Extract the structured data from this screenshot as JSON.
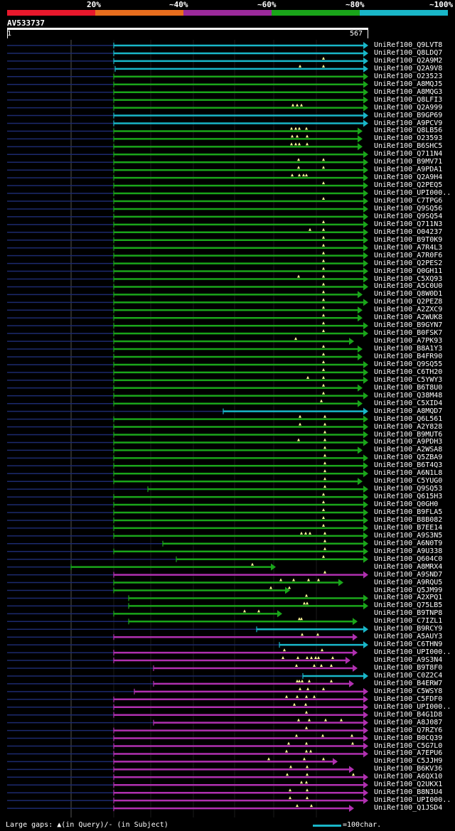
{
  "legend": {
    "labels": [
      "20%",
      "~40%",
      "~60%",
      "~80%",
      "~100%"
    ],
    "colors": [
      "#e8182c",
      "#e86e1e",
      "#9b2a9b",
      "#1aa51a",
      "#19b6c8"
    ]
  },
  "query": {
    "id": "AV533737",
    "start": "1",
    "end": "567",
    "length": 567
  },
  "colors": {
    "cyan": "#19b6c8",
    "green": "#1aa51a",
    "magenta": "#b030b0",
    "navy": "#1c2a6e",
    "gapline": "#222"
  },
  "hits": [
    {
      "name": "UniRef100_Q9LVT8",
      "color": "cyan",
      "start": 160,
      "end": 518,
      "marks": []
    },
    {
      "name": "UniRef100_Q8LDQ7",
      "color": "cyan",
      "start": 160,
      "end": 518,
      "marks": []
    },
    {
      "name": "UniRef100_Q2A9M2",
      "color": "cyan",
      "start": 160,
      "end": 518,
      "marks": [
        455
      ]
    },
    {
      "name": "UniRef100_Q2A9V8",
      "color": "cyan",
      "start": 162,
      "end": 518,
      "marks": [
        422,
        455
      ]
    },
    {
      "name": "UniRef100_O23523",
      "color": "green",
      "start": 160,
      "end": 518,
      "marks": []
    },
    {
      "name": "UniRef100_A8MQJ5",
      "color": "green",
      "start": 160,
      "end": 518,
      "marks": []
    },
    {
      "name": "UniRef100_A8MQG3",
      "color": "green",
      "start": 160,
      "end": 518,
      "marks": []
    },
    {
      "name": "UniRef100_Q8LFI3",
      "color": "green",
      "start": 160,
      "end": 518,
      "marks": []
    },
    {
      "name": "UniRef100_Q2A999",
      "color": "green",
      "start": 160,
      "end": 518,
      "marks": [
        412,
        418,
        424
      ]
    },
    {
      "name": "UniRef100_B9GP69",
      "color": "cyan",
      "start": 160,
      "end": 518,
      "marks": []
    },
    {
      "name": "UniRef100_A9PCV9",
      "color": "cyan",
      "start": 160,
      "end": 518,
      "marks": []
    },
    {
      "name": "UniRef100_Q8LB56",
      "color": "green",
      "start": 160,
      "end": 510,
      "marks": [
        410,
        416,
        421,
        431
      ]
    },
    {
      "name": "UniRef100_O23593",
      "color": "green",
      "start": 160,
      "end": 510,
      "marks": [
        411,
        418,
        432
      ]
    },
    {
      "name": "UniRef100_B6SHC5",
      "color": "green",
      "start": 160,
      "end": 510,
      "marks": [
        410,
        416,
        421,
        432
      ]
    },
    {
      "name": "UniRef100_Q711N4",
      "color": "green",
      "start": 160,
      "end": 518,
      "marks": []
    },
    {
      "name": "UniRef100_B9MV71",
      "color": "green",
      "start": 160,
      "end": 518,
      "marks": [
        420,
        455
      ]
    },
    {
      "name": "UniRef100_A9PDA1",
      "color": "green",
      "start": 160,
      "end": 518,
      "marks": [
        420,
        455
      ]
    },
    {
      "name": "UniRef100_Q2A9H4",
      "color": "green",
      "start": 160,
      "end": 518,
      "marks": [
        411,
        421,
        427,
        431
      ]
    },
    {
      "name": "UniRef100_Q2PEQ5",
      "color": "green",
      "start": 160,
      "end": 518,
      "marks": [
        455
      ]
    },
    {
      "name": "UniRef100_UPI000..",
      "color": "green",
      "start": 160,
      "end": 518,
      "marks": []
    },
    {
      "name": "UniRef100_C7TPG6",
      "color": "green",
      "start": 160,
      "end": 518,
      "marks": [
        455
      ]
    },
    {
      "name": "UniRef100_Q9SQ56",
      "color": "green",
      "start": 160,
      "end": 518,
      "marks": []
    },
    {
      "name": "UniRef100_Q9SQ54",
      "color": "green",
      "start": 160,
      "end": 518,
      "marks": []
    },
    {
      "name": "UniRef100_Q711N3",
      "color": "green",
      "start": 160,
      "end": 518,
      "marks": [
        455
      ]
    },
    {
      "name": "UniRef100_O04237",
      "color": "green",
      "start": 160,
      "end": 518,
      "marks": [
        436,
        455
      ]
    },
    {
      "name": "UniRef100_B9T0K9",
      "color": "green",
      "start": 160,
      "end": 518,
      "marks": [
        455
      ]
    },
    {
      "name": "UniRef100_A7R4L3",
      "color": "green",
      "start": 160,
      "end": 518,
      "marks": [
        455
      ]
    },
    {
      "name": "UniRef100_A7R0F6",
      "color": "green",
      "start": 160,
      "end": 518,
      "marks": [
        455
      ]
    },
    {
      "name": "UniRef100_Q2PES2",
      "color": "green",
      "start": 160,
      "end": 518,
      "marks": [
        455
      ]
    },
    {
      "name": "UniRef100_Q0GH11",
      "color": "green",
      "start": 160,
      "end": 518,
      "marks": [
        455
      ]
    },
    {
      "name": "UniRef100_C5XQ93",
      "color": "green",
      "start": 160,
      "end": 518,
      "marks": [
        420,
        455
      ]
    },
    {
      "name": "UniRef100_A5C0U0",
      "color": "green",
      "start": 160,
      "end": 518,
      "marks": [
        455
      ]
    },
    {
      "name": "UniRef100_Q8W0D1",
      "color": "green",
      "start": 160,
      "end": 510,
      "marks": [
        455
      ]
    },
    {
      "name": "UniRef100_Q2PEZ8",
      "color": "green",
      "start": 160,
      "end": 518,
      "marks": [
        455
      ]
    },
    {
      "name": "UniRef100_A2ZXC9",
      "color": "green",
      "start": 160,
      "end": 510,
      "marks": [
        455
      ]
    },
    {
      "name": "UniRef100_A2WUK8",
      "color": "green",
      "start": 160,
      "end": 510,
      "marks": [
        455
      ]
    },
    {
      "name": "UniRef100_B9GYN7",
      "color": "green",
      "start": 160,
      "end": 518,
      "marks": [
        455
      ]
    },
    {
      "name": "UniRef100_B0FSK7",
      "color": "green",
      "start": 160,
      "end": 518,
      "marks": [
        455
      ]
    },
    {
      "name": "UniRef100_A7PK93",
      "color": "green",
      "start": 160,
      "end": 498,
      "marks": [
        416
      ]
    },
    {
      "name": "UniRef100_B8A1Y3",
      "color": "green",
      "start": 160,
      "end": 510,
      "marks": [
        455
      ]
    },
    {
      "name": "UniRef100_B4FR90",
      "color": "green",
      "start": 160,
      "end": 510,
      "marks": [
        455
      ]
    },
    {
      "name": "UniRef100_Q9SQ55",
      "color": "green",
      "start": 160,
      "end": 518,
      "marks": [
        455
      ]
    },
    {
      "name": "UniRef100_C6TH20",
      "color": "green",
      "start": 160,
      "end": 518,
      "marks": [
        455
      ]
    },
    {
      "name": "UniRef100_C5YWY3",
      "color": "green",
      "start": 160,
      "end": 518,
      "marks": [
        433,
        455
      ]
    },
    {
      "name": "UniRef100_B6T8U0",
      "color": "green",
      "start": 160,
      "end": 510,
      "marks": [
        455
      ]
    },
    {
      "name": "UniRef100_Q38M48",
      "color": "green",
      "start": 160,
      "end": 518,
      "marks": [
        455
      ]
    },
    {
      "name": "UniRef100_C5XID4",
      "color": "green",
      "start": 160,
      "end": 510,
      "marks": [
        452
      ]
    },
    {
      "name": "UniRef100_A8MQD7",
      "color": "cyan",
      "start": 314,
      "end": 518,
      "marks": []
    },
    {
      "name": "UniRef100_Q6L561",
      "color": "green",
      "start": 160,
      "end": 518,
      "marks": [
        422,
        457
      ]
    },
    {
      "name": "UniRef100_A2Y828",
      "color": "green",
      "start": 160,
      "end": 518,
      "marks": [
        422,
        457
      ]
    },
    {
      "name": "UniRef100_B9MUT6",
      "color": "green",
      "start": 160,
      "end": 518,
      "marks": [
        457
      ]
    },
    {
      "name": "UniRef100_A9PDH3",
      "color": "green",
      "start": 160,
      "end": 518,
      "marks": [
        420,
        457
      ]
    },
    {
      "name": "UniRef100_A2WSA8",
      "color": "green",
      "start": 160,
      "end": 510,
      "marks": [
        457
      ]
    },
    {
      "name": "UniRef100_Q5ZBA9",
      "color": "green",
      "start": 160,
      "end": 518,
      "marks": [
        457
      ]
    },
    {
      "name": "UniRef100_B6T4Q3",
      "color": "green",
      "start": 160,
      "end": 518,
      "marks": [
        457
      ]
    },
    {
      "name": "UniRef100_A6N1L8",
      "color": "green",
      "start": 160,
      "end": 518,
      "marks": [
        457
      ]
    },
    {
      "name": "UniRef100_C5YUG0",
      "color": "green",
      "start": 160,
      "end": 510,
      "marks": [
        457
      ]
    },
    {
      "name": "UniRef100_Q9SQ53",
      "color": "green",
      "start": 208,
      "end": 518,
      "marks": [
        457
      ]
    },
    {
      "name": "UniRef100_Q615H3",
      "color": "green",
      "start": 160,
      "end": 518,
      "marks": [
        455
      ]
    },
    {
      "name": "UniRef100_Q0GH0",
      "color": "green",
      "start": 160,
      "end": 518,
      "marks": [
        455
      ]
    },
    {
      "name": "UniRef100_B9FLA5",
      "color": "green",
      "start": 160,
      "end": 518,
      "marks": [
        455
      ]
    },
    {
      "name": "UniRef100_B8B082",
      "color": "green",
      "start": 160,
      "end": 518,
      "marks": [
        455
      ]
    },
    {
      "name": "UniRef100_B7EE14",
      "color": "green",
      "start": 160,
      "end": 518,
      "marks": [
        455
      ]
    },
    {
      "name": "UniRef100_A9S3N5",
      "color": "green",
      "start": 160,
      "end": 518,
      "marks": [
        424,
        430,
        436,
        457
      ]
    },
    {
      "name": "UniRef100_A6N0T9",
      "color": "green",
      "start": 229,
      "end": 518,
      "marks": [
        457
      ]
    },
    {
      "name": "UniRef100_A9U338",
      "color": "green",
      "start": 160,
      "end": 518,
      "marks": [
        457
      ]
    },
    {
      "name": "UniRef100_Q604C0",
      "color": "green",
      "start": 248,
      "end": 518,
      "marks": [
        455
      ]
    },
    {
      "name": "UniRef100_A8MRX4",
      "color": "green",
      "start": 100,
      "end": 388,
      "marks": [
        355
      ]
    },
    {
      "name": "UniRef100_A9SND7",
      "color": "magenta",
      "start": 160,
      "end": 518,
      "marks": [
        457
      ]
    },
    {
      "name": "UniRef100_A9RQU5",
      "color": "green",
      "start": 160,
      "end": 483,
      "marks": [
        395,
        413,
        434,
        448
      ]
    },
    {
      "name": "UniRef100_Q5JM99",
      "color": "green",
      "start": 160,
      "end": 408,
      "marks": [
        381,
        407
      ]
    },
    {
      "name": "UniRef100_A2XPQ1",
      "color": "green",
      "start": 181,
      "end": 518,
      "marks": [
        431
      ]
    },
    {
      "name": "UniRef100_Q75LB5",
      "color": "green",
      "start": 181,
      "end": 518,
      "marks": [
        428,
        432
      ]
    },
    {
      "name": "UniRef100_B9TNP8",
      "color": "green",
      "start": 160,
      "end": 397,
      "marks": [
        344,
        364
      ]
    },
    {
      "name": "UniRef100_C7IZL1",
      "color": "green",
      "start": 181,
      "end": 503,
      "marks": [
        421,
        424
      ]
    },
    {
      "name": "UniRef100_B9RCY9",
      "color": "cyan",
      "start": 361,
      "end": 518,
      "marks": []
    },
    {
      "name": "UniRef100_A5AUY3",
      "color": "magenta",
      "start": 160,
      "end": 503,
      "marks": [
        425,
        447
      ]
    },
    {
      "name": "UniRef100_C6THN9",
      "color": "cyan",
      "start": 393,
      "end": 518,
      "marks": []
    },
    {
      "name": "UniRef100_UPI000..",
      "color": "magenta",
      "start": 160,
      "end": 503,
      "marks": [
        400,
        453
      ]
    },
    {
      "name": "UniRef100_A9S3N4",
      "color": "magenta",
      "start": 160,
      "end": 493,
      "marks": [
        398,
        419,
        432,
        438,
        444,
        448,
        468
      ]
    },
    {
      "name": "UniRef100_B9T8F0",
      "color": "magenta",
      "start": 216,
      "end": 503,
      "marks": [
        417,
        442,
        452,
        466
      ]
    },
    {
      "name": "UniRef100_C0Z2C4",
      "color": "cyan",
      "start": 426,
      "end": 518,
      "marks": []
    },
    {
      "name": "UniRef100_B4ERW7",
      "color": "magenta",
      "start": 216,
      "end": 498,
      "marks": [
        418,
        421,
        425,
        435,
        466
      ]
    },
    {
      "name": "UniRef100_C5WSY8",
      "color": "magenta",
      "start": 189,
      "end": 518,
      "marks": [
        422,
        433,
        455
      ]
    },
    {
      "name": "UniRef100_C5FDF0",
      "color": "magenta",
      "start": 160,
      "end": 518,
      "marks": [
        403,
        418,
        431,
        442
      ]
    },
    {
      "name": "UniRef100_UPI000..",
      "color": "magenta",
      "start": 160,
      "end": 518,
      "marks": [
        414,
        430
      ]
    },
    {
      "name": "UniRef100_B4G1D8",
      "color": "magenta",
      "start": 160,
      "end": 518,
      "marks": [
        431
      ]
    },
    {
      "name": "UniRef100_A8J087",
      "color": "magenta",
      "start": 216,
      "end": 518,
      "marks": [
        420,
        435,
        458,
        480
      ]
    },
    {
      "name": "UniRef100_Q7RZY6",
      "color": "magenta",
      "start": 160,
      "end": 518,
      "marks": [
        431
      ]
    },
    {
      "name": "UniRef100_B0CQ39",
      "color": "magenta",
      "start": 160,
      "end": 518,
      "marks": [
        417,
        454,
        495
      ]
    },
    {
      "name": "UniRef100_C5G7L0",
      "color": "magenta",
      "start": 160,
      "end": 518,
      "marks": [
        406,
        431,
        496
      ]
    },
    {
      "name": "UniRef100_A7EPU6",
      "color": "magenta",
      "start": 160,
      "end": 518,
      "marks": [
        403,
        431,
        437
      ]
    },
    {
      "name": "UniRef100_C5JJH9",
      "color": "magenta",
      "start": 160,
      "end": 475,
      "marks": [
        378,
        428,
        455
      ]
    },
    {
      "name": "UniRef100_B6KV36",
      "color": "magenta",
      "start": 160,
      "end": 498,
      "marks": [
        409,
        432
      ]
    },
    {
      "name": "UniRef100_A6QX10",
      "color": "magenta",
      "start": 160,
      "end": 518,
      "marks": [
        404,
        432,
        497
      ]
    },
    {
      "name": "UniRef100_Q2UKX1",
      "color": "magenta",
      "start": 160,
      "end": 518,
      "marks": [
        424,
        431
      ]
    },
    {
      "name": "UniRef100_B8N3U4",
      "color": "magenta",
      "start": 160,
      "end": 518,
      "marks": [
        408,
        432
      ]
    },
    {
      "name": "UniRef100_UPI000..",
      "color": "magenta",
      "start": 160,
      "end": 518,
      "marks": [
        408,
        432
      ]
    },
    {
      "name": "UniRef100_Q1JSD4",
      "color": "magenta",
      "start": 160,
      "end": 498,
      "marks": [
        418,
        438
      ]
    }
  ],
  "footer": {
    "gaps_label": "Large gaps: ▲(in Query)/- (in Subject)",
    "scale_label": "=100char."
  }
}
